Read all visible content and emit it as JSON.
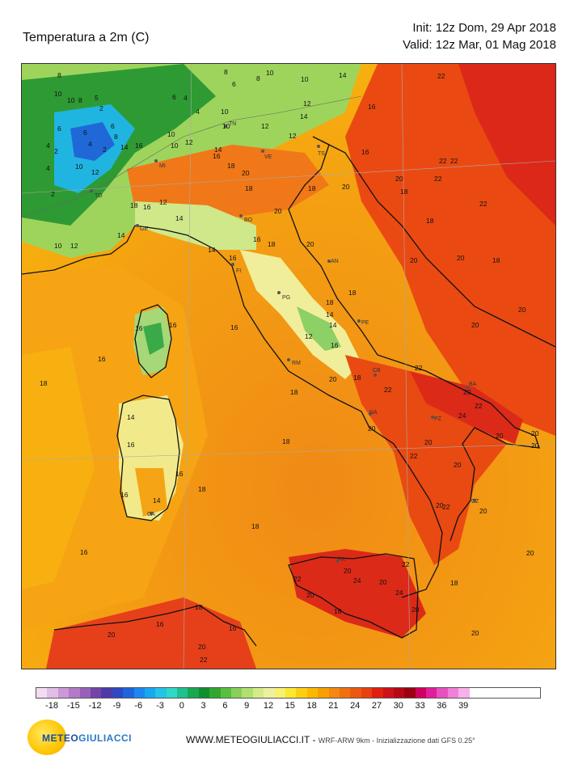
{
  "header": {
    "title": "Temperatura a 2m   (C)",
    "init": "Init: 12z Dom, 29 Apr 2018",
    "valid": "Valid: 12z Mar, 01 Mag 2018"
  },
  "legend": {
    "ticks": [
      "-18",
      "-15",
      "-12",
      "-9",
      "-6",
      "-3",
      "0",
      "3",
      "6",
      "9",
      "12",
      "15",
      "18",
      "21",
      "24",
      "27",
      "30",
      "33",
      "36",
      "39"
    ],
    "colors": [
      "#f4dcf4",
      "#e2bde6",
      "#cc98d8",
      "#b27ac8",
      "#9860b8",
      "#7444a8",
      "#4e3aa8",
      "#3048c0",
      "#1f64dc",
      "#1a88f0",
      "#18a8f0",
      "#24c4e6",
      "#30d8c8",
      "#20c090",
      "#18a850",
      "#10902c",
      "#30a830",
      "#58c040",
      "#88d058",
      "#b0e070",
      "#d4ec88",
      "#eef0a0",
      "#f8f070",
      "#fce830",
      "#fcd010",
      "#fcb800",
      "#f8a000",
      "#f48810",
      "#f07010",
      "#ec5810",
      "#e84010",
      "#e02010",
      "#d01018",
      "#b80818",
      "#9c0010",
      "#d00060",
      "#e0209a",
      "#e850c0",
      "#f080d8",
      "#f8b0ec"
    ]
  },
  "cities": [
    {
      "name": "MI"
    },
    {
      "name": "TO"
    },
    {
      "name": "GE"
    },
    {
      "name": "VE"
    },
    {
      "name": "TN"
    },
    {
      "name": "TS"
    },
    {
      "name": "BO"
    },
    {
      "name": "FI"
    },
    {
      "name": "AN"
    },
    {
      "name": "PG"
    },
    {
      "name": "PE"
    },
    {
      "name": "RM"
    },
    {
      "name": "CB"
    },
    {
      "name": "BA"
    },
    {
      "name": "NA"
    },
    {
      "name": "PZ"
    },
    {
      "name": "CZ"
    },
    {
      "name": "PA"
    },
    {
      "name": "CA"
    }
  ],
  "temperature_labels": [
    "8",
    "10",
    "8",
    "6",
    "10",
    "10",
    "8",
    "14",
    "22",
    "22",
    "10",
    "8",
    "5",
    "2",
    "6",
    "4",
    "4",
    "10",
    "12",
    "16",
    "6",
    "6",
    "4",
    "2",
    "8",
    "10",
    "10",
    "12",
    "14",
    "12",
    "4",
    "2",
    "6",
    "14",
    "16",
    "10",
    "12",
    "14",
    "18",
    "16",
    "4",
    "10",
    "16",
    "18",
    "20",
    "12",
    "18",
    "20",
    "20",
    "22",
    "2",
    "12",
    "18",
    "16",
    "14",
    "20",
    "18",
    "22",
    "18",
    "22",
    "10",
    "12",
    "14",
    "16",
    "18",
    "20",
    "18",
    "20",
    "18",
    "20",
    "16",
    "14",
    "16",
    "16",
    "18",
    "14",
    "18",
    "20",
    "20",
    "16",
    "16",
    "14",
    "12",
    "16",
    "20",
    "18",
    "22",
    "22",
    "20",
    "24",
    "16",
    "18",
    "18",
    "20",
    "22",
    "22",
    "20",
    "20",
    "20",
    "16",
    "14",
    "16",
    "14",
    "18",
    "18",
    "20",
    "22",
    "20",
    "20",
    "20",
    "16",
    "22",
    "20",
    "24",
    "20",
    "20",
    "18",
    "22",
    "20",
    "24",
    "16",
    "18",
    "20",
    "20",
    "16",
    "18",
    "22",
    "20",
    "20"
  ],
  "footer": {
    "site": "WWW.METEOGIULIACCI.IT",
    "sep": " - ",
    "model": "WRF-ARW 9km - Inizializzazione dati GFS 0.25°"
  },
  "logo": {
    "part1": "METEO",
    "part2": "GIULIACCI"
  }
}
